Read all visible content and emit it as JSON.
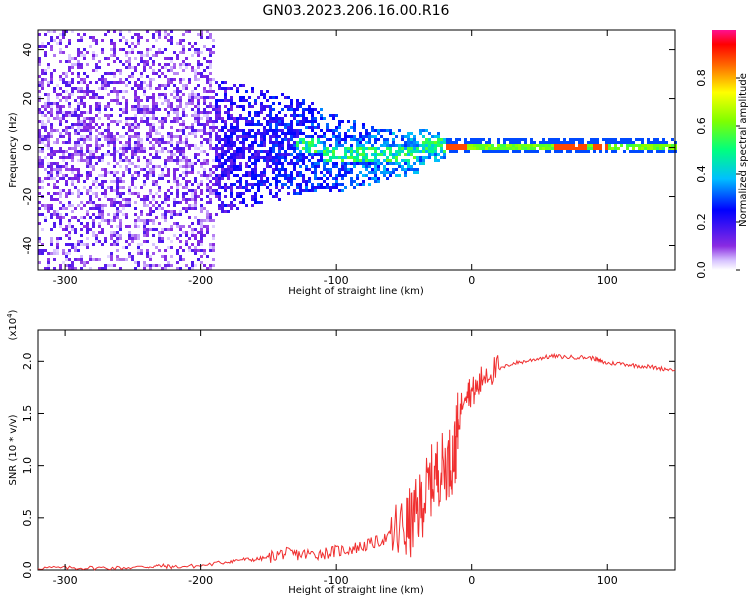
{
  "title": "GN03.2023.206.16.00.R16",
  "chart_data": [
    {
      "type": "heatmap",
      "xlabel": "Height of straight line (km)",
      "ylabel": "Frequency (Hz)",
      "xlim": [
        -320,
        150
      ],
      "ylim": [
        -50,
        48
      ],
      "x_ticks": [
        -300,
        -200,
        -100,
        0,
        100
      ],
      "y_ticks": [
        -40,
        -20,
        0,
        20,
        40
      ],
      "colorbar": {
        "label": "Normalized spectral amplitude",
        "range": [
          0,
          1
        ],
        "ticks": [
          0.0,
          0.2,
          0.4,
          0.6,
          0.8
        ]
      },
      "grid": false
    },
    {
      "type": "line",
      "xlabel": "Height of straight line (km)",
      "ylabel": "SNR (10 * v/v)",
      "scale_label": "(x10",
      "scale_exponent": "4",
      "xlim": [
        -320,
        150
      ],
      "ylim": [
        0,
        2.3
      ],
      "x_ticks": [
        -300,
        -200,
        -100,
        0,
        100
      ],
      "y_ticks": [
        0.0,
        0.5,
        1.0,
        1.5,
        2.0
      ],
      "color": "#f03030",
      "grid": false,
      "x": [
        -320,
        -300,
        -280,
        -260,
        -240,
        -230,
        -220,
        -200,
        -180,
        -170,
        -160,
        -150,
        -140,
        -130,
        -120,
        -110,
        -100,
        -90,
        -80,
        -70,
        -60,
        -50,
        -45,
        -40,
        -35,
        -30,
        -25,
        -20,
        -15,
        -12,
        -10,
        -5,
        0,
        5,
        10,
        20,
        30,
        40,
        50,
        60,
        70,
        80,
        90,
        95,
        100,
        110,
        120,
        130,
        140,
        150
      ],
      "y": [
        0.02,
        0.02,
        0.02,
        0.02,
        0.03,
        0.04,
        0.03,
        0.04,
        0.08,
        0.1,
        0.1,
        0.12,
        0.16,
        0.15,
        0.15,
        0.16,
        0.18,
        0.2,
        0.23,
        0.27,
        0.32,
        0.38,
        0.45,
        0.55,
        0.7,
        0.85,
        0.95,
        1.0,
        1.05,
        1.15,
        1.4,
        1.75,
        1.7,
        1.75,
        1.9,
        1.92,
        1.98,
        2.0,
        2.03,
        2.05,
        2.04,
        2.04,
        2.03,
        2.0,
        1.98,
        1.98,
        1.96,
        1.95,
        1.93,
        1.92
      ]
    }
  ]
}
